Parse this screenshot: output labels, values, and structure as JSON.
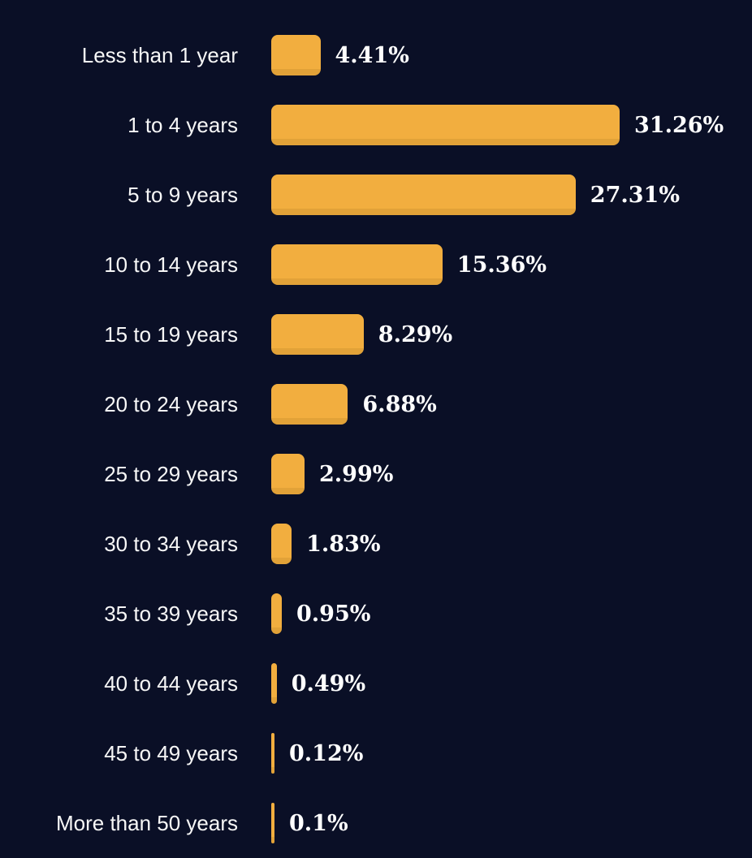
{
  "colors": {
    "background": "#0A0F26",
    "bar": "#F2AE3F",
    "bar_bottom_shadow": "#E2A238",
    "label_text": "#F7F7F7",
    "value_text": "#FFFFFF"
  },
  "chart_data": {
    "type": "bar",
    "orientation": "horizontal",
    "title": "",
    "xlabel": "",
    "ylabel": "",
    "legend": "none",
    "grid": false,
    "axis_ticks_visible": false,
    "xlim": [
      0,
      32
    ],
    "categories": [
      "Less than 1 year",
      "1 to 4 years",
      "5 to 9 years",
      "10 to 14 years",
      "15 to 19 years",
      "20 to 24 years",
      "25 to 29 years",
      "30 to 34 years",
      "35 to 39 years",
      "40 to 44 years",
      "45 to 49 years",
      "More than 50 years"
    ],
    "values": [
      4.41,
      31.26,
      27.31,
      15.36,
      8.29,
      6.88,
      2.99,
      1.83,
      0.95,
      0.49,
      0.12,
      0.1
    ],
    "value_labels": [
      "4.41%",
      "31.26%",
      "27.31%",
      "15.36%",
      "8.29%",
      "6.88%",
      "2.99%",
      "1.83%",
      "0.95%",
      "0.49%",
      "0.12%",
      "0.1%"
    ]
  }
}
